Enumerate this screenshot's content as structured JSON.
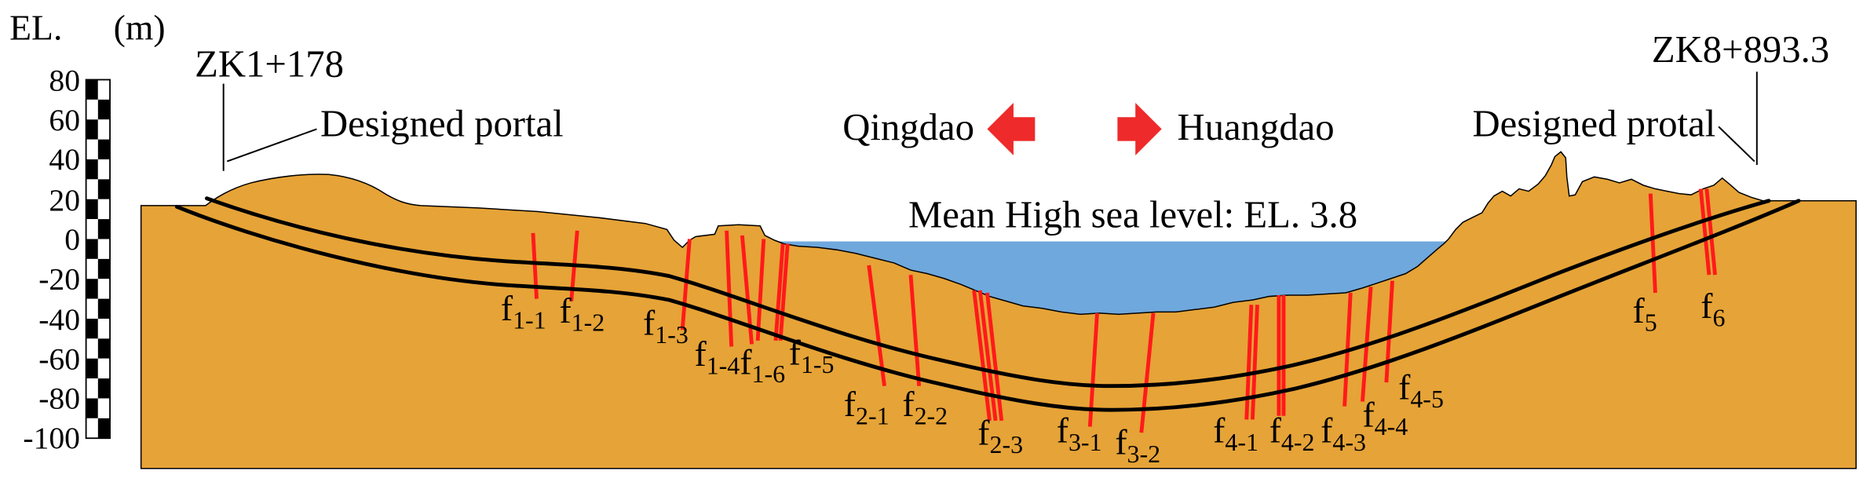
{
  "scale": {
    "label": "EL.",
    "unit": "(m)",
    "ticks": [
      "80",
      "60",
      "40",
      "20",
      "0",
      "-20",
      "-40",
      "-60",
      "-80",
      "-100"
    ]
  },
  "left_portal": {
    "station": "ZK1+178",
    "label": "Designed portal"
  },
  "right_portal": {
    "station": "ZK8+893.3",
    "label": "Designed protal"
  },
  "directions": {
    "left": "Qingdao",
    "right": "Huangdao"
  },
  "sea_level_label": "Mean High sea level: EL. 3.8",
  "faults": [
    {
      "letter": "f",
      "sub": "1-1"
    },
    {
      "letter": "f",
      "sub": "1-2"
    },
    {
      "letter": "f",
      "sub": "1-3"
    },
    {
      "letter": "f",
      "sub": "1-4"
    },
    {
      "letter": "f",
      "sub": "1-6"
    },
    {
      "letter": "f",
      "sub": "1-5"
    },
    {
      "letter": "f",
      "sub": "2-1"
    },
    {
      "letter": "f",
      "sub": "2-2"
    },
    {
      "letter": "f",
      "sub": "2-3"
    },
    {
      "letter": "f",
      "sub": "3-1"
    },
    {
      "letter": "f",
      "sub": "3-2"
    },
    {
      "letter": "f",
      "sub": "4-1"
    },
    {
      "letter": "f",
      "sub": "4-2"
    },
    {
      "letter": "f",
      "sub": "4-3"
    },
    {
      "letter": "f",
      "sub": "4-4"
    },
    {
      "letter": "f",
      "sub": "4-5"
    },
    {
      "letter": "f",
      "sub": "5"
    },
    {
      "letter": "f",
      "sub": "6"
    }
  ],
  "colors": {
    "ground": "#e6a337",
    "sea": "#6fa8dc",
    "fault": "#ff1a1a",
    "arrow": "#ee2a2a",
    "tunnel": "#000000"
  },
  "icons": {
    "left_arrow": "arrow-left-icon",
    "right_arrow": "arrow-right-icon"
  }
}
